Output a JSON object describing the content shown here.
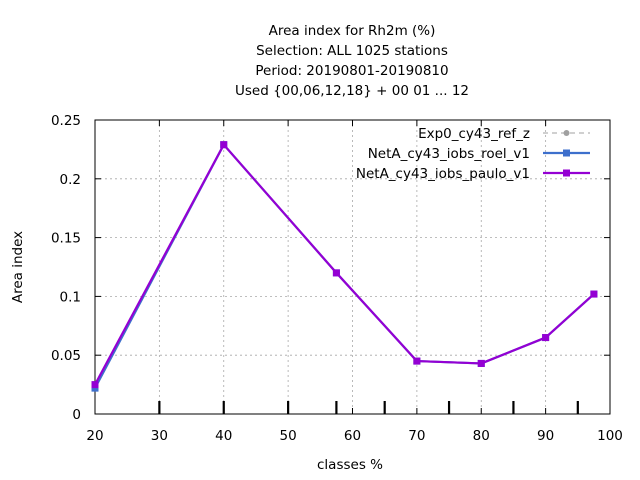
{
  "chart_data": {
    "type": "line",
    "title_lines": [
      "Area index  for Rh2m (%)",
      "Selection: ALL    1025 stations",
      "Period: 20190801-20190810",
      "Used {00,06,12,18} + 00 01 ... 12"
    ],
    "xlabel": "classes %",
    "ylabel": "Area index",
    "xlim": [
      20,
      100
    ],
    "ylim": [
      0,
      0.25
    ],
    "x_ticks": [
      20,
      30,
      40,
      50,
      60,
      70,
      80,
      90,
      100
    ],
    "y_ticks": [
      0,
      0.05,
      0.1,
      0.15,
      0.2,
      0.25
    ],
    "x_tick_labels": [
      "20",
      "30",
      "40",
      "50",
      "60",
      "70",
      "80",
      "90",
      "100"
    ],
    "y_tick_labels": [
      "0",
      "0.05",
      "0.1",
      "0.15",
      "0.2",
      "0.25"
    ],
    "class_marks": [
      30,
      40,
      50,
      57.5,
      65,
      75,
      85,
      95
    ],
    "grid": true,
    "legend_position": "top-right",
    "series": [
      {
        "name": "Exp0_cy43_ref_z",
        "color": "#a0a0a0",
        "dashed": true,
        "marker": "circle",
        "x": [
          20,
          40,
          57.5,
          70,
          80,
          90,
          97.5
        ],
        "y": [
          0.023,
          0.229,
          0.12,
          0.045,
          0.043,
          0.065,
          0.102
        ]
      },
      {
        "name": "NetA_cy43_iobs_roel_v1",
        "color": "#3d6fcc",
        "dashed": false,
        "marker": "square",
        "x": [
          20,
          40,
          57.5,
          70,
          80,
          90,
          97.5
        ],
        "y": [
          0.022,
          0.229,
          0.12,
          0.045,
          0.043,
          0.065,
          0.102
        ]
      },
      {
        "name": "NetA_cy43_iobs_paulo_v1",
        "color": "#9400d3",
        "dashed": false,
        "marker": "square",
        "x": [
          20,
          40,
          57.5,
          70,
          80,
          90,
          97.5
        ],
        "y": [
          0.025,
          0.229,
          0.12,
          0.045,
          0.043,
          0.065,
          0.102
        ]
      }
    ]
  }
}
